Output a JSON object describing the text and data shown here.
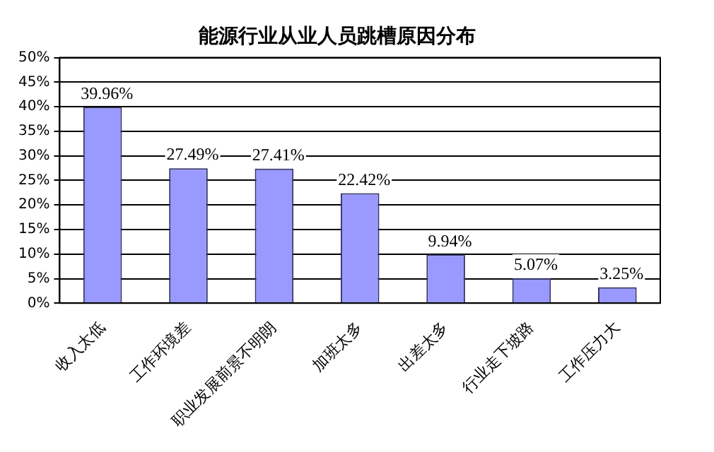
{
  "chart_data": {
    "type": "bar",
    "title": "能源行业从业人员跳槽原因分布",
    "categories": [
      "收入太低",
      "工作环境差",
      "职业发展前景不明朗",
      "加班太多",
      "出差太多",
      "行业走下坡路",
      "工作压力大"
    ],
    "values": [
      39.96,
      27.49,
      27.41,
      22.42,
      9.94,
      5.07,
      3.25
    ],
    "value_labels": [
      "39.96%",
      "27.49%",
      "27.41%",
      "22.42%",
      "9.94%",
      "5.07%",
      "3.25%"
    ],
    "color": "#9999ff",
    "ylim": [
      0,
      50
    ],
    "yticks": [
      {
        "value": 0,
        "label": "0%"
      },
      {
        "value": 5,
        "label": "5%"
      },
      {
        "value": 10,
        "label": "10%"
      },
      {
        "value": 15,
        "label": "15%"
      },
      {
        "value": 20,
        "label": "20%"
      },
      {
        "value": 25,
        "label": "25%"
      },
      {
        "value": 30,
        "label": "30%"
      },
      {
        "value": 35,
        "label": "35%"
      },
      {
        "value": 40,
        "label": "40%"
      },
      {
        "value": 45,
        "label": "45%"
      },
      {
        "value": 50,
        "label": "50%"
      }
    ],
    "grid": "y",
    "legend": false
  }
}
